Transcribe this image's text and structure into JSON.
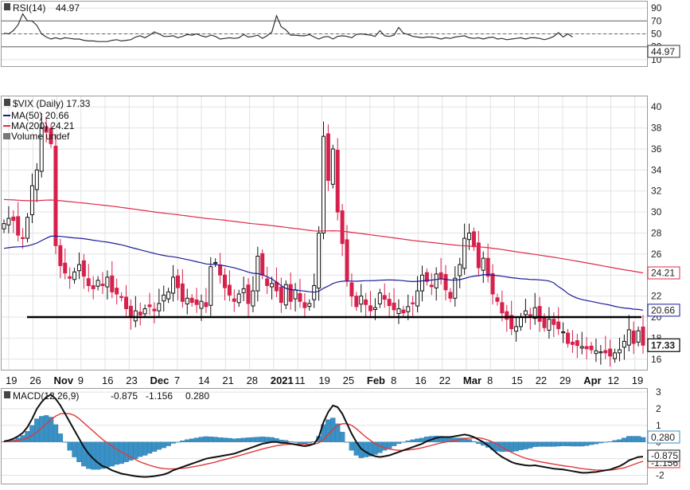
{
  "chart_data": [
    {
      "panel": "RSI",
      "type": "line",
      "legend": {
        "label": "RSI(14)",
        "value": "44.97"
      },
      "y_ticks": [
        "90",
        "70",
        "50",
        "30",
        "10"
      ],
      "ylim": [
        0,
        100
      ],
      "reference_levels": [
        70,
        50,
        30
      ],
      "last_value": "44.97",
      "series": [
        {
          "values": [
            51,
            50,
            55,
            64,
            81,
            70,
            70,
            63,
            50,
            45,
            42,
            44,
            42,
            44,
            43,
            42,
            42,
            40,
            39,
            39,
            38,
            38,
            38,
            40,
            41,
            39,
            40,
            41,
            45,
            47,
            44,
            48,
            53,
            50,
            46,
            46,
            47,
            44,
            46,
            49,
            48,
            50,
            47,
            45,
            48,
            46,
            42,
            43,
            44,
            43,
            44,
            49,
            45,
            46,
            48,
            43,
            47,
            53,
            78,
            61,
            56,
            48,
            48,
            47,
            47,
            49,
            45,
            42,
            45,
            46,
            42,
            46,
            47,
            46,
            44,
            49,
            50,
            49,
            48,
            46,
            55,
            47,
            46,
            48,
            60,
            51,
            49,
            46,
            45,
            44,
            45,
            45,
            44,
            42,
            44,
            43,
            45,
            46,
            47,
            44,
            43,
            44,
            42,
            44,
            45,
            42,
            43,
            41,
            42,
            43,
            44,
            42,
            44,
            44,
            43,
            41,
            43,
            46,
            52,
            45,
            50,
            45
          ]
        }
      ]
    },
    {
      "panel": "Price",
      "type": "candlestick",
      "title": "$VIX (Daily) 17.33",
      "legend": [
        {
          "label": "MA(50) 20.66",
          "color": "#1a1a9a"
        },
        {
          "label": "MA(200) 24.21",
          "color": "#dd2b4a"
        },
        {
          "label": "Volume undef",
          "color": "#777777"
        }
      ],
      "y_ticks": [
        "40",
        "38",
        "36",
        "34",
        "32",
        "30",
        "28",
        "26",
        "24",
        "22",
        "20",
        "18",
        "16"
      ],
      "ylim": [
        15,
        41
      ],
      "x_tick_labels": [
        "19",
        "26",
        "Nov",
        "9",
        "16",
        "23",
        "Dec",
        "7",
        "14",
        "21",
        "28",
        "2021",
        "11",
        "19",
        "25",
        "Feb",
        "8",
        "16",
        "22",
        "Mar",
        "8",
        "15",
        "22",
        "29",
        "Apr",
        "12",
        "19"
      ],
      "bold_x_labels": [
        "Nov",
        "Dec",
        "2021",
        "Feb",
        "Mar",
        "Apr"
      ],
      "price_badges": {
        "ma200": "24.21",
        "ma50": "20.66",
        "last": "17.33"
      },
      "horizontal_line": 20,
      "up_color": "#ffffff",
      "down_color": "#d6214c",
      "close": [
        28.9,
        29.4,
        29.2,
        27.8,
        27.5,
        29.5,
        32.5,
        34.0,
        38.0,
        37.6,
        36.5,
        26.8,
        24.9,
        24.2,
        23.7,
        24.3,
        25.0,
        23.9,
        23.0,
        22.7,
        23.5,
        23.0,
        23.8,
        22.4,
        22.2,
        21.9,
        20.8,
        20.0,
        20.6,
        20.2,
        20.8,
        21.0,
        20.6,
        21.3,
        22.1,
        22.4,
        23.8,
        22.8,
        21.5,
        21.8,
        21.4,
        21.2,
        21.5,
        21.0,
        24.8,
        25.2,
        24.0,
        22.8,
        22.1,
        21.5,
        22.2,
        22.7,
        21.3,
        22.5,
        25.8,
        24.0,
        23.0,
        23.2,
        22.5,
        21.4,
        23.1,
        21.5,
        22.6,
        21.5,
        20.9,
        21.3,
        23.0,
        28.0,
        37.2,
        33.0,
        36.0,
        30.0,
        27.0,
        23.5,
        22.0,
        21.0,
        22.0,
        21.2,
        20.6,
        20.9,
        22.3,
        21.7,
        21.1,
        20.7,
        20.8,
        20.4,
        21.0,
        21.3,
        22.5,
        24.0,
        23.4,
        22.9,
        24.1,
        23.7,
        22.6,
        21.8,
        23.7,
        25.0,
        27.5,
        28.0,
        26.7,
        24.7,
        25.6,
        23.9,
        22.2,
        21.5,
        20.4,
        19.8,
        18.9,
        19.1,
        20.0,
        20.6,
        20.0,
        20.9,
        19.6,
        19.0,
        19.8,
        19.3,
        18.9,
        18.6,
        17.5,
        17.4,
        17.3,
        17.2,
        17.0,
        16.9,
        16.8,
        16.7,
        16.6,
        16.3,
        16.6,
        16.9,
        17.7,
        18.8,
        17.5,
        18.7,
        17.33
      ]
    },
    {
      "panel": "MACD",
      "type": "line+histogram",
      "legend": {
        "label": "MACD(12,26,9)",
        "macd": "-0.875",
        "signal": "-1.156",
        "hist": "0.280"
      },
      "y_ticks": [
        "3",
        "2",
        "1",
        "0",
        "-1",
        "-2"
      ],
      "ylim": [
        -2.5,
        3.2
      ],
      "badges": {
        "hist": "0.280",
        "macd": "-0.875",
        "signal": "-1.156"
      },
      "macd_color": "#111111",
      "signal_color": "#e03a3a",
      "hist_color": "#3a91c6",
      "macd": [
        0.05,
        0.1,
        0.2,
        0.35,
        0.55,
        0.9,
        1.4,
        2.0,
        2.4,
        2.7,
        2.85,
        2.6,
        2.2,
        1.7,
        1.2,
        0.7,
        0.2,
        -0.3,
        -0.7,
        -1.0,
        -1.25,
        -1.45,
        -1.55,
        -1.7,
        -1.8,
        -1.9,
        -1.95,
        -2.0,
        -2.05,
        -2.08,
        -2.1,
        -2.08,
        -2.05,
        -2.0,
        -1.95,
        -1.85,
        -1.7,
        -1.6,
        -1.5,
        -1.4,
        -1.3,
        -1.2,
        -1.1,
        -1.0,
        -0.95,
        -0.9,
        -0.85,
        -0.8,
        -0.75,
        -0.7,
        -0.6,
        -0.5,
        -0.4,
        -0.3,
        -0.2,
        -0.1,
        -0.05,
        0.0,
        0.0,
        -0.05,
        -0.05,
        -0.1,
        -0.15,
        -0.2,
        -0.25,
        -0.2,
        -0.1,
        0.3,
        1.2,
        1.8,
        2.2,
        2.1,
        1.7,
        1.1,
        0.5,
        0.0,
        -0.4,
        -0.6,
        -0.75,
        -0.85,
        -0.9,
        -0.85,
        -0.8,
        -0.7,
        -0.6,
        -0.5,
        -0.4,
        -0.3,
        -0.2,
        -0.1,
        0.05,
        0.15,
        0.25,
        0.3,
        0.3,
        0.3,
        0.35,
        0.4,
        0.45,
        0.4,
        0.3,
        0.15,
        0.0,
        -0.2,
        -0.45,
        -0.7,
        -0.9,
        -1.05,
        -1.2,
        -1.3,
        -1.35,
        -1.4,
        -1.42,
        -1.4,
        -1.45,
        -1.5,
        -1.55,
        -1.6,
        -1.63,
        -1.65,
        -1.7,
        -1.75,
        -1.8,
        -1.85,
        -1.85,
        -1.82,
        -1.8,
        -1.75,
        -1.7,
        -1.65,
        -1.55,
        -1.45,
        -1.3,
        -1.1,
        -1.0,
        -0.9,
        -0.875
      ],
      "signal": [
        0.02,
        0.04,
        0.06,
        0.1,
        0.15,
        0.25,
        0.4,
        0.6,
        0.85,
        1.1,
        1.35,
        1.55,
        1.7,
        1.72,
        1.7,
        1.6,
        1.4,
        1.15,
        0.9,
        0.65,
        0.4,
        0.15,
        -0.05,
        -0.25,
        -0.45,
        -0.6,
        -0.75,
        -0.9,
        -1.05,
        -1.2,
        -1.3,
        -1.4,
        -1.48,
        -1.55,
        -1.6,
        -1.62,
        -1.62,
        -1.6,
        -1.58,
        -1.55,
        -1.5,
        -1.45,
        -1.4,
        -1.33,
        -1.27,
        -1.2,
        -1.12,
        -1.05,
        -0.98,
        -0.9,
        -0.82,
        -0.74,
        -0.66,
        -0.58,
        -0.5,
        -0.42,
        -0.35,
        -0.28,
        -0.22,
        -0.18,
        -0.15,
        -0.13,
        -0.12,
        -0.12,
        -0.13,
        -0.14,
        -0.13,
        -0.05,
        0.15,
        0.45,
        0.75,
        1.0,
        1.1,
        1.1,
        1.0,
        0.8,
        0.55,
        0.3,
        0.1,
        -0.1,
        -0.25,
        -0.35,
        -0.42,
        -0.47,
        -0.5,
        -0.5,
        -0.48,
        -0.44,
        -0.4,
        -0.34,
        -0.27,
        -0.2,
        -0.12,
        -0.05,
        0.0,
        0.05,
        0.1,
        0.15,
        0.2,
        0.24,
        0.26,
        0.25,
        0.2,
        0.12,
        0.0,
        -0.15,
        -0.32,
        -0.48,
        -0.62,
        -0.75,
        -0.87,
        -0.97,
        -1.05,
        -1.12,
        -1.18,
        -1.23,
        -1.28,
        -1.33,
        -1.38,
        -1.42,
        -1.46,
        -1.5,
        -1.55,
        -1.6,
        -1.63,
        -1.66,
        -1.68,
        -1.69,
        -1.69,
        -1.68,
        -1.65,
        -1.6,
        -1.55,
        -1.45,
        -1.35,
        -1.25,
        -1.156
      ],
      "histogram": [
        0.03,
        0.06,
        0.14,
        0.25,
        0.4,
        0.65,
        1.0,
        1.4,
        1.55,
        1.6,
        1.5,
        1.05,
        0.5,
        -0.02,
        -0.5,
        -0.9,
        -1.2,
        -1.45,
        -1.6,
        -1.65,
        -1.65,
        -1.6,
        -1.5,
        -1.45,
        -1.35,
        -1.3,
        -1.2,
        -1.1,
        -1.0,
        -0.88,
        -0.8,
        -0.68,
        -0.57,
        -0.45,
        -0.35,
        -0.23,
        -0.08,
        0.0,
        0.08,
        0.15,
        0.2,
        0.25,
        0.3,
        0.33,
        0.32,
        0.3,
        0.27,
        0.25,
        0.23,
        0.2,
        0.22,
        0.24,
        0.26,
        0.28,
        0.3,
        0.32,
        0.3,
        0.28,
        0.22,
        0.13,
        0.1,
        0.03,
        -0.03,
        -0.08,
        -0.12,
        -0.06,
        0.03,
        0.35,
        1.05,
        1.35,
        1.45,
        1.1,
        0.6,
        0.0,
        -0.5,
        -0.8,
        -0.95,
        -0.9,
        -0.85,
        -0.75,
        -0.65,
        -0.5,
        -0.38,
        -0.23,
        -0.1,
        0.0,
        0.08,
        0.14,
        0.2,
        0.24,
        0.32,
        0.35,
        0.37,
        0.35,
        0.3,
        0.25,
        0.25,
        0.25,
        0.25,
        0.16,
        0.04,
        -0.1,
        -0.2,
        -0.32,
        -0.45,
        -0.55,
        -0.58,
        -0.57,
        -0.58,
        -0.55,
        -0.48,
        -0.43,
        -0.37,
        -0.28,
        -0.27,
        -0.27,
        -0.27,
        -0.27,
        -0.25,
        -0.23,
        -0.24,
        -0.25,
        -0.25,
        -0.25,
        -0.22,
        -0.16,
        -0.12,
        -0.06,
        -0.01,
        0.03,
        0.1,
        0.15,
        0.25,
        0.35,
        0.35,
        0.35,
        0.28
      ]
    }
  ]
}
